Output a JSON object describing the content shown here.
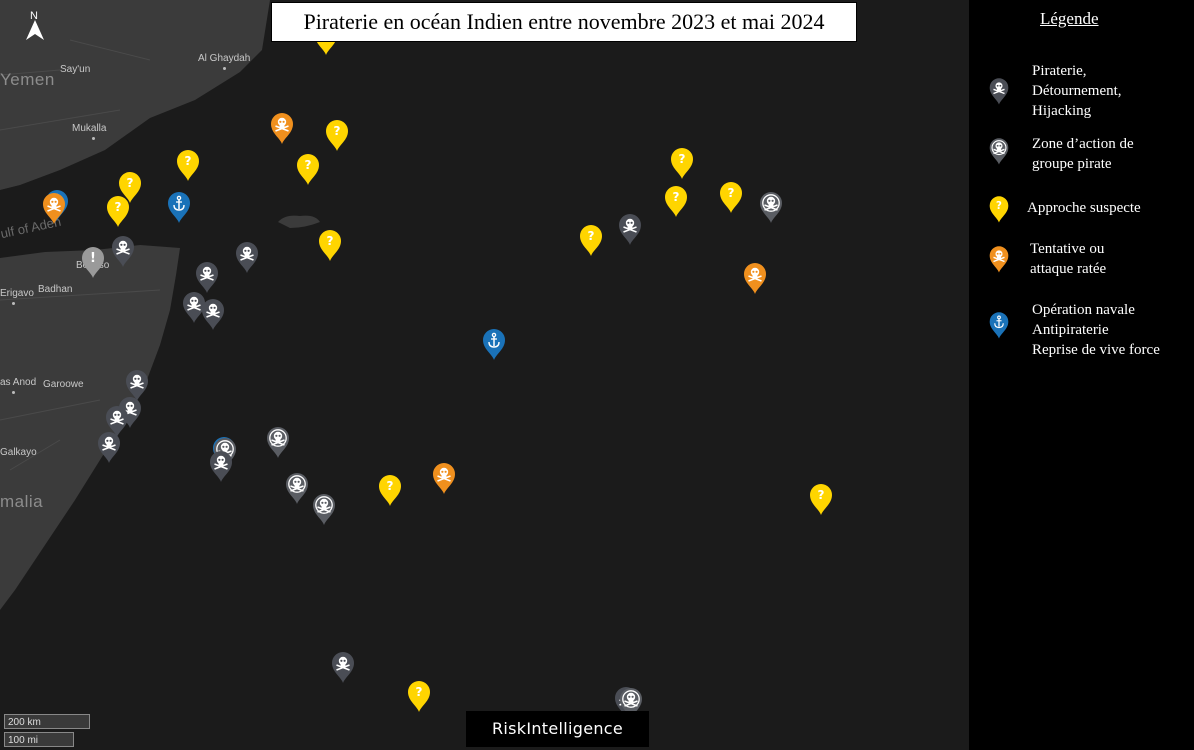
{
  "title": "Piraterie en océan Indien entre novembre 2023 et mai 2024",
  "north_label": "N",
  "scale": {
    "km": "200 km",
    "mi": "100 mi"
  },
  "logo": "RiskIntelligence",
  "places": {
    "yemen": "Yemen",
    "sayun": "Say'un",
    "al_ghaydah": "Al Ghaydah",
    "mukalla": "Mukalla",
    "gulf_of_aden": "ulf of Aden",
    "bosaso": "Bosaso",
    "erigavo": "Erigavo",
    "badhan": "Badhan",
    "las_anod": "as Anod",
    "garoowe": "Garoowe",
    "galkayo": "Galkayo",
    "somalia": "malia"
  },
  "legend": {
    "title": "Légende",
    "items": [
      {
        "type": "hijack",
        "label": [
          "Piraterie,",
          "Détournement,",
          "Hijacking"
        ]
      },
      {
        "type": "group",
        "label": [
          "Zone d’action de",
          "groupe pirate"
        ]
      },
      {
        "type": "suspect",
        "label": [
          "Approche suspecte"
        ]
      },
      {
        "type": "attempt",
        "label": [
          "Tentative ou",
          "attaque ratée"
        ]
      },
      {
        "type": "naval",
        "label": [
          "Opération navale",
          "Antipiraterie",
          "Reprise de vive force"
        ]
      }
    ]
  },
  "marker_colors": {
    "hijack": "#4a4d55",
    "group": "#5a5d63",
    "suspect": "#ffd500",
    "attempt": "#f0901e",
    "naval": "#1a72b8",
    "info": "#9a9a9a"
  },
  "marker_icons": {
    "hijack": "skull-crossbones-icon",
    "group": "skull-crossbones-icon",
    "suspect": "question-mark-icon",
    "attempt": "skull-crossbones-icon",
    "naval": "anchor-icon",
    "info": "exclamation-icon"
  }
}
